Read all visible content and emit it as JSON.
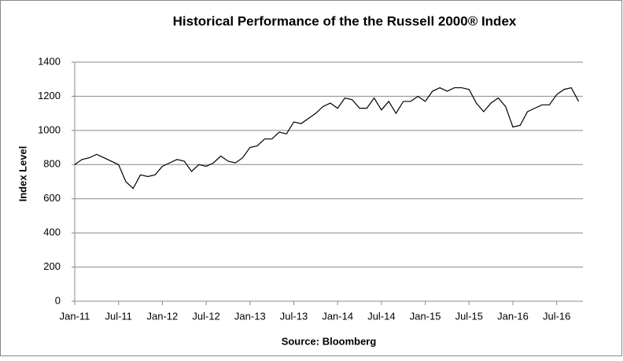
{
  "chart_data": {
    "type": "line",
    "title": "Historical Performance of the the Russell 2000® Index",
    "y_label": "Index Level",
    "x_label": "Source: Bloomberg",
    "categories": [
      "Jan-11",
      null,
      null,
      null,
      null,
      null,
      "Jul-11",
      null,
      null,
      null,
      null,
      null,
      "Jan-12",
      null,
      null,
      null,
      null,
      null,
      "Jul-12",
      null,
      null,
      null,
      null,
      null,
      "Jan-13",
      null,
      null,
      null,
      null,
      null,
      "Jul-13",
      null,
      null,
      null,
      null,
      null,
      "Jan-14",
      null,
      null,
      null,
      null,
      null,
      "Jul-14",
      null,
      null,
      null,
      null,
      null,
      "Jan-15",
      null,
      null,
      null,
      null,
      null,
      "Jul-15",
      null,
      null,
      null,
      null,
      null,
      "Jan-16",
      null,
      null,
      null,
      null,
      null,
      "Jul-16",
      null,
      null,
      null
    ],
    "series": [
      {
        "name": "Russell 2000",
        "color": "#000000",
        "values": [
          800,
          830,
          840,
          860,
          840,
          820,
          800,
          700,
          660,
          740,
          730,
          740,
          790,
          810,
          830,
          820,
          760,
          800,
          790,
          810,
          850,
          820,
          810,
          840,
          900,
          910,
          950,
          950,
          990,
          980,
          1050,
          1040,
          1070,
          1100,
          1140,
          1160,
          1130,
          1190,
          1180,
          1130,
          1130,
          1190,
          1120,
          1170,
          1100,
          1170,
          1170,
          1200,
          1170,
          1230,
          1250,
          1230,
          1250,
          1250,
          1240,
          1160,
          1110,
          1160,
          1190,
          1140,
          1020,
          1030,
          1110,
          1130,
          1150,
          1150,
          1210,
          1240,
          1250,
          1170
        ]
      }
    ],
    "ylim": [
      0,
      1400
    ],
    "yticks": [
      0,
      200,
      400,
      600,
      800,
      1000,
      1200,
      1400
    ],
    "grid": true
  }
}
